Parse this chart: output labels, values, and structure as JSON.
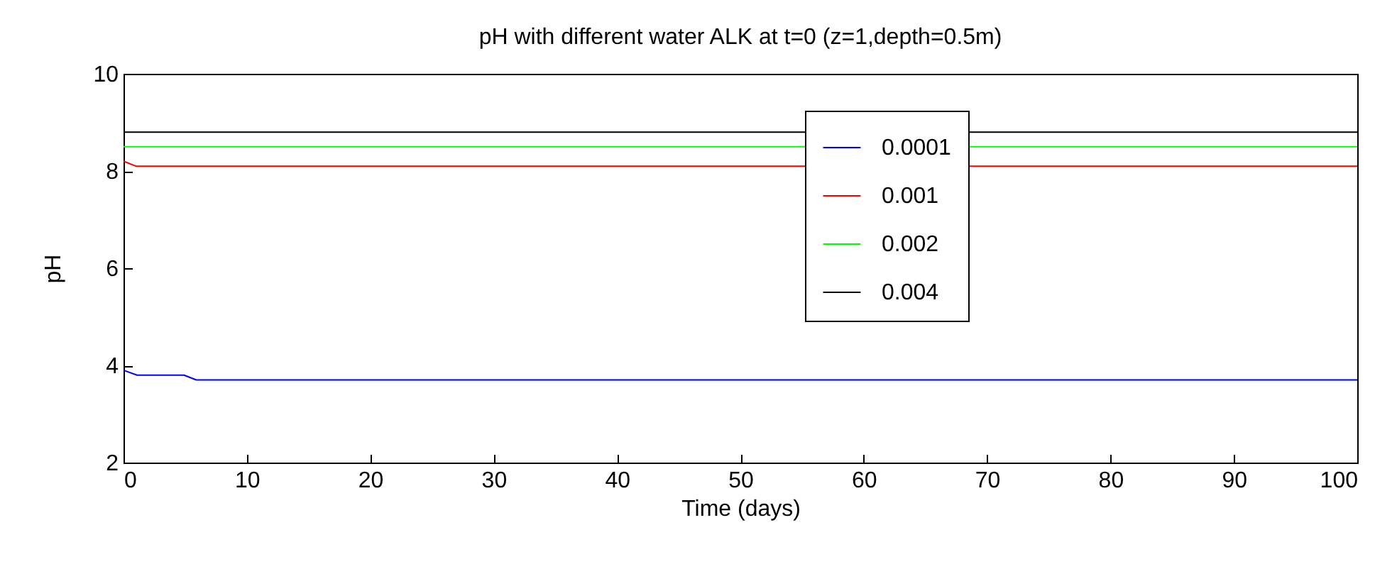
{
  "chart_data": {
    "type": "line",
    "title": "pH with different water ALK at t=0 (z=1,depth=0.5m)",
    "xlabel": "Time (days)",
    "ylabel": "pH",
    "xlim": [
      0,
      100
    ],
    "xticks": [
      0,
      10,
      20,
      30,
      40,
      50,
      60,
      70,
      80,
      90,
      100
    ],
    "ylim": [
      2,
      10
    ],
    "yticks": [
      2,
      4,
      6,
      8,
      10
    ],
    "grid": false,
    "legend": "top right",
    "marker": "none",
    "line_style": "solid",
    "series": [
      {
        "name": "0.0001",
        "color": "#0000ff",
        "x": [
          0,
          1.1,
          4.9,
          5.9,
          100
        ],
        "values": [
          3.9,
          3.8,
          3.8,
          3.7,
          3.7
        ]
      },
      {
        "name": "0.001",
        "color": "#ff0000",
        "x": [
          0,
          1,
          100
        ],
        "values": [
          8.2,
          8.1,
          8.1
        ]
      },
      {
        "name": "0.002",
        "color": "#00ff00",
        "x": [
          0,
          100
        ],
        "values": [
          8.5,
          8.5
        ]
      },
      {
        "name": "0.004",
        "color": "#000000",
        "x": [
          0,
          100
        ],
        "values": [
          8.8,
          8.8
        ]
      }
    ]
  }
}
